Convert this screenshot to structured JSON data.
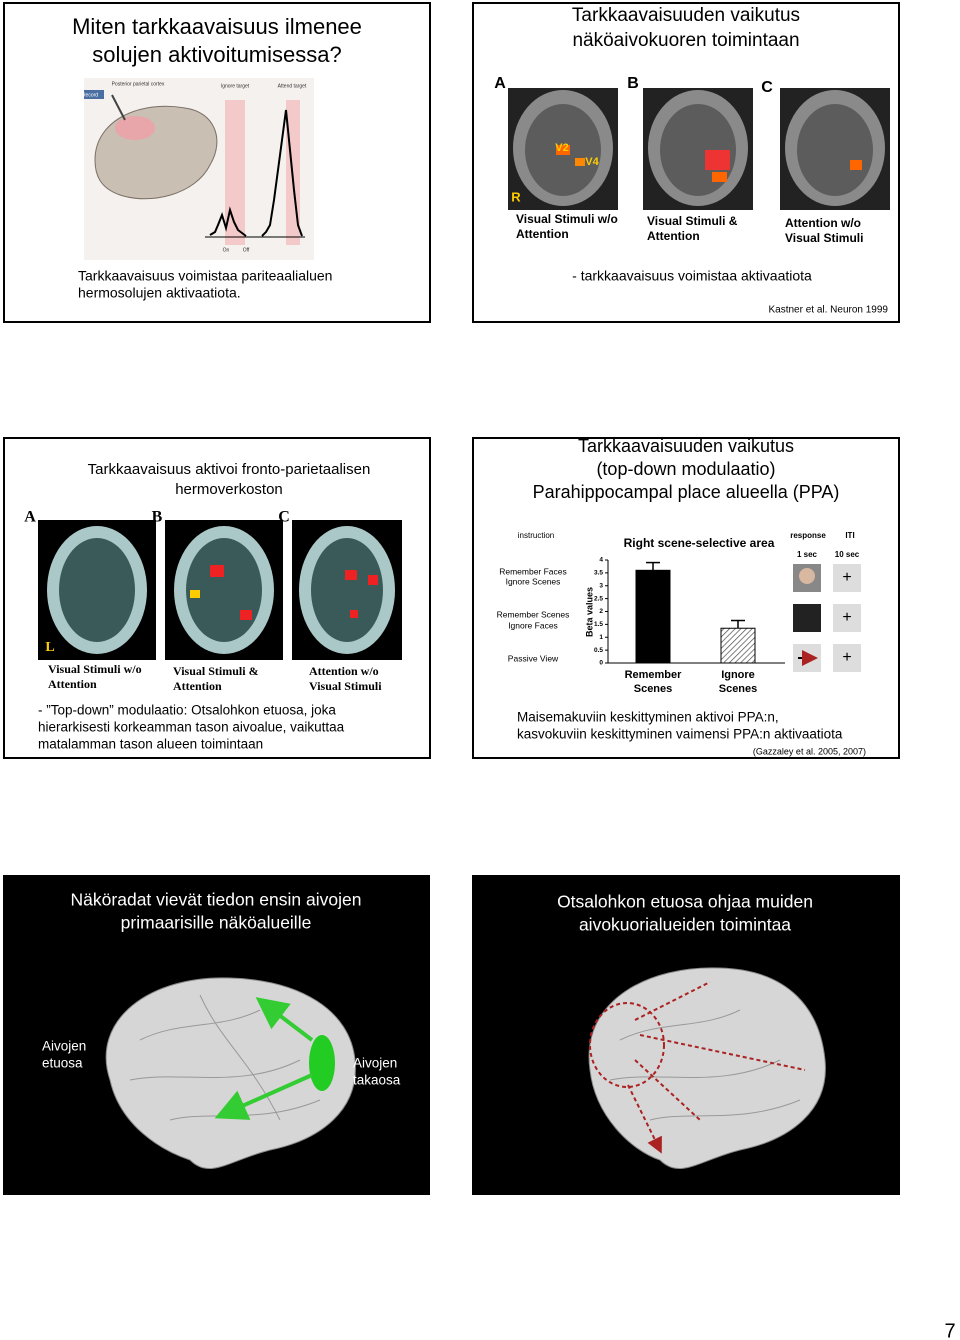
{
  "slides": [
    {
      "title": [
        "Miten tarkkaavaisuus ilmenee",
        "solujen aktivoitumisessa?"
      ],
      "figure_labels": [
        "Posterior parietal cortex",
        "Ignore target",
        "Attend target",
        "On",
        "Off",
        "Record"
      ],
      "text": [
        "Tarkkaavaisuus voimistaa pariteaalialuen",
        "hermosolujen aktivaatiota."
      ]
    },
    {
      "title": [
        "Tarkkaavaisuuden vaikutus",
        "näköaivokuoren toimintaan"
      ],
      "panels": [
        "A",
        "B",
        "C"
      ],
      "captions": [
        [
          "Visual Stimuli w/o",
          "Attention"
        ],
        [
          "Visual Stimuli &",
          "Attention"
        ],
        [
          "Attention w/o",
          "Visual Stimuli"
        ]
      ],
      "figure_labels": [
        "V2",
        "V4",
        "R"
      ],
      "text": [
        "- tarkkaavaisuus voimistaa aktivaatiota"
      ],
      "reference": "Kastner et al. Neuron 1999"
    },
    {
      "title": [
        "Tarkkaavaisuus aktivoi fronto-parietaalisen",
        "hermoverkoston"
      ],
      "panels": [
        "A",
        "B",
        "C"
      ],
      "captions": [
        [
          "Visual Stimuli w/o",
          "Attention"
        ],
        [
          "Visual Stimuli &",
          "Attention"
        ],
        [
          "Attention w/o",
          "Visual Stimuli"
        ]
      ],
      "figure_labels": [
        "L"
      ],
      "text": [
        "- ”Top-down” modulaatio: Otsalohkon etuosa, joka",
        "hierarkisesti korkeamman tason aivoalue, vaikuttaa",
        "matalamman tason alueen toimintaan"
      ]
    },
    {
      "title": [
        "Tarkkaavaisuuden vaikutus",
        "(top-down modulaatio)",
        "Parahippocampal place alueella (PPA)"
      ],
      "phase_labels": [
        "instruction",
        "response",
        "ITI",
        "1 sec",
        "10 sec"
      ],
      "conditions": [
        [
          "Remember Faces",
          "Ignore Scenes"
        ],
        [
          "Remember Scenes",
          "Ignore Faces"
        ],
        [
          "Passive View"
        ]
      ],
      "chart": {
        "type": "bar",
        "title": "Right scene-selective area",
        "ylabel": "Beta values",
        "categories": [
          [
            "Remember",
            "Scenes"
          ],
          [
            "Ignore",
            "Scenes"
          ]
        ],
        "values": [
          3.6,
          1.35
        ],
        "errors": [
          0.3,
          0.3
        ],
        "colors": [
          "#000000",
          "#ffffff"
        ],
        "ylim": [
          0,
          4
        ],
        "yticks": [
          0,
          0.5,
          1,
          1.5,
          2,
          2.5,
          3,
          3.5,
          4
        ]
      },
      "text": [
        "Maisemakuviin keskittyminen aktivoi PPA:n,",
        "kasvokuviin keskittyminen vaimensi PPA:n aktivaatiota"
      ],
      "reference": "(Gazzaley et al. 2005, 2007)"
    },
    {
      "title": [
        "Näköradat vievät tiedon ensin aivojen",
        "primaarisille näköalueille"
      ],
      "labels": [
        [
          "Aivojen",
          "etuosa"
        ],
        [
          "Aivojen",
          "takaosa"
        ]
      ]
    },
    {
      "title": [
        "Otsalohkon etuosa ohjaa muiden",
        "aivokuorialueiden toimintaa"
      ]
    }
  ],
  "page_number": "7"
}
